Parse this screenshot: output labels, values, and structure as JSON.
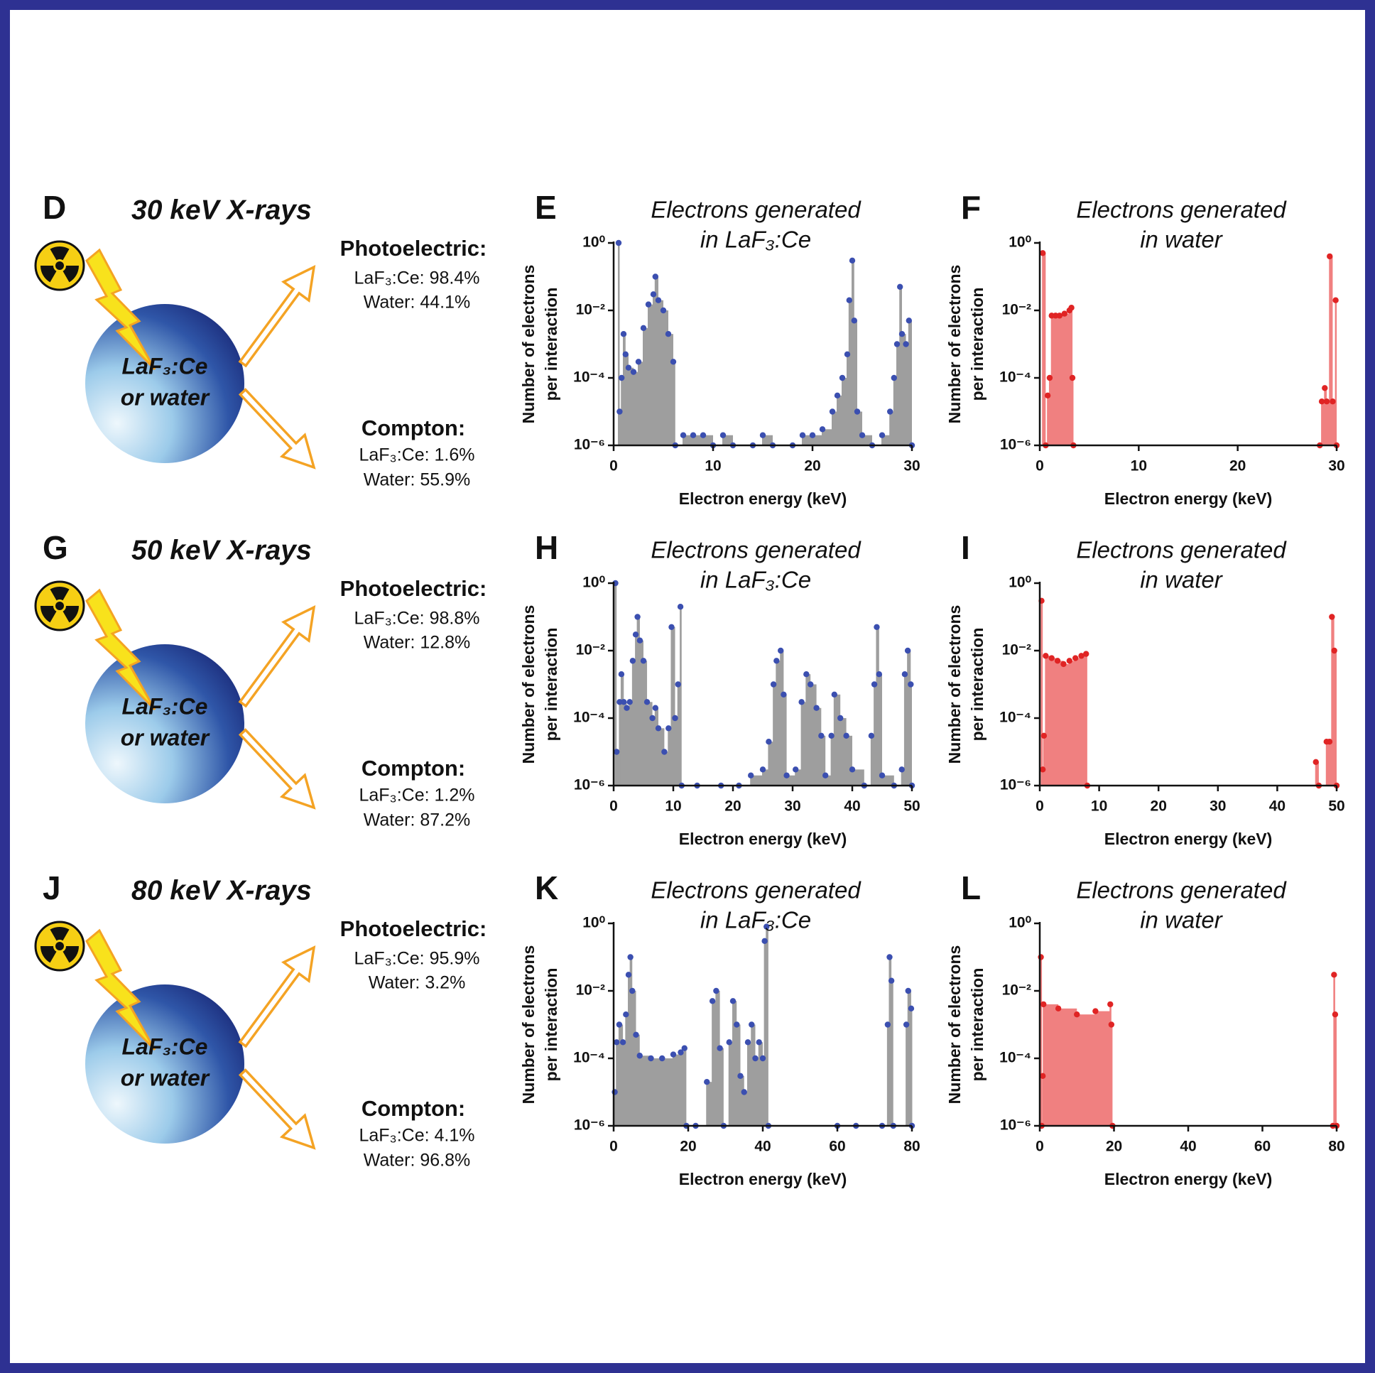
{
  "chart_data": [
    {
      "type": "stem",
      "panel": "E",
      "title": [
        "Electrons generated",
        "in LaF₃:Ce"
      ],
      "xlabel": "Electron energy (keV)",
      "ylabel": [
        "Number of electrons",
        "per interaction"
      ],
      "log_y": true,
      "color": "#3b4fb0",
      "fill_color": "#9e9e9e",
      "xlim": [
        0,
        30
      ],
      "xticks": [
        0,
        10,
        20,
        30
      ],
      "ylim": [
        1e-06,
        1
      ],
      "yticks": [
        {
          "value": 1e-06,
          "label": "10⁻⁶"
        },
        {
          "value": 0.0001,
          "label": "10⁻⁴"
        },
        {
          "value": 0.01,
          "label": "10⁻²"
        },
        {
          "value": 1,
          "label": "10⁰"
        }
      ],
      "x": [
        0.5,
        0.6,
        0.8,
        1.0,
        1.2,
        1.5,
        2.0,
        2.5,
        3.0,
        3.5,
        4.0,
        4.2,
        4.5,
        5.0,
        5.5,
        6.0,
        6.2,
        7,
        8,
        9,
        10,
        11,
        12,
        14,
        15,
        16,
        18,
        19,
        20,
        21,
        22,
        22.5,
        23,
        23.5,
        23.7,
        24.0,
        24.2,
        24.5,
        25,
        26,
        27,
        27.8,
        28.2,
        28.5,
        28.8,
        29.0,
        29.4,
        29.7,
        30.0
      ],
      "values": [
        1,
        1e-05,
        0.0001,
        0.002,
        0.0005,
        0.0002,
        0.00015,
        0.0003,
        0.003,
        0.015,
        0.03,
        0.1,
        0.02,
        0.01,
        0.002,
        0.0003,
        1e-06,
        2e-06,
        2e-06,
        2e-06,
        1e-06,
        2e-06,
        1e-06,
        1e-06,
        2e-06,
        1e-06,
        1e-06,
        2e-06,
        2e-06,
        3e-06,
        1e-05,
        3e-05,
        0.0001,
        0.0005,
        0.02,
        0.3,
        0.005,
        1e-05,
        2e-06,
        1e-06,
        2e-06,
        1e-05,
        0.0001,
        0.001,
        0.05,
        0.002,
        0.001,
        0.005,
        1e-06
      ]
    },
    {
      "type": "stem",
      "panel": "F",
      "title": [
        "Electrons generated",
        "in water"
      ],
      "xlabel": "Electron energy (keV)",
      "ylabel": [
        "Number of electrons",
        "per interaction"
      ],
      "log_y": true,
      "color": "#e02424",
      "fill_color": "#f08080",
      "xlim": [
        0,
        30
      ],
      "xticks": [
        0,
        10,
        20,
        30
      ],
      "ylim": [
        1e-06,
        1
      ],
      "yticks": [
        {
          "value": 1e-06,
          "label": "10⁻⁶"
        },
        {
          "value": 0.0001,
          "label": "10⁻⁴"
        },
        {
          "value": 0.01,
          "label": "10⁻²"
        },
        {
          "value": 1,
          "label": "10⁰"
        }
      ],
      "x": [
        0.3,
        0.6,
        0.8,
        1.0,
        1.2,
        1.6,
        2.0,
        2.5,
        3.0,
        3.2,
        3.3,
        3.4,
        28.3,
        28.5,
        28.8,
        29.0,
        29.3,
        29.6,
        29.9,
        30
      ],
      "values": [
        0.5,
        1e-06,
        3e-05,
        0.0001,
        0.007,
        0.007,
        0.007,
        0.008,
        0.01,
        0.012,
        0.0001,
        1e-06,
        1e-06,
        2e-05,
        5e-05,
        2e-05,
        0.4,
        2e-05,
        0.02,
        1e-06
      ]
    },
    {
      "type": "stem",
      "panel": "H",
      "title": [
        "Electrons generated",
        "in LaF₃:Ce"
      ],
      "xlabel": "Electron energy (keV)",
      "ylabel": [
        "Number of electrons",
        "per interaction"
      ],
      "log_y": true,
      "color": "#3b4fb0",
      "fill_color": "#9e9e9e",
      "xlim": [
        0,
        50
      ],
      "xticks": [
        0,
        10,
        20,
        30,
        40,
        50
      ],
      "ylim": [
        1e-06,
        1
      ],
      "yticks": [
        {
          "value": 1e-06,
          "label": "10⁻⁶"
        },
        {
          "value": 0.0001,
          "label": "10⁻⁴"
        },
        {
          "value": 0.01,
          "label": "10⁻²"
        },
        {
          "value": 1,
          "label": "10⁰"
        }
      ],
      "x": [
        0.3,
        0.5,
        1.0,
        1.3,
        1.7,
        2.2,
        2.7,
        3.2,
        3.7,
        4.0,
        4.4,
        5.0,
        5.6,
        6.5,
        7.0,
        7.5,
        8.5,
        9.2,
        9.7,
        10.3,
        10.8,
        11.2,
        11.4,
        14,
        18,
        21,
        23,
        25,
        26,
        26.8,
        27.3,
        28,
        28.5,
        29,
        30.5,
        31.5,
        32.3,
        33,
        34,
        34.8,
        35.5,
        36.5,
        37,
        38,
        39,
        40,
        42,
        43.2,
        43.7,
        44.1,
        44.5,
        45,
        47,
        48.3,
        48.8,
        49.3,
        49.8,
        50
      ],
      "values": [
        1,
        1e-05,
        0.0003,
        0.002,
        0.0003,
        0.0002,
        0.0003,
        0.005,
        0.03,
        0.1,
        0.02,
        0.005,
        0.0003,
        0.0001,
        0.0002,
        5e-05,
        1e-05,
        5e-05,
        0.05,
        0.0001,
        0.001,
        0.2,
        1e-06,
        1e-06,
        1e-06,
        1e-06,
        2e-06,
        3e-06,
        2e-05,
        0.001,
        0.005,
        0.01,
        0.0005,
        2e-06,
        3e-06,
        0.0003,
        0.002,
        0.001,
        0.0002,
        3e-05,
        2e-06,
        3e-05,
        0.0005,
        0.0001,
        3e-05,
        3e-06,
        1e-06,
        3e-05,
        0.001,
        0.05,
        0.002,
        2e-06,
        1e-06,
        3e-06,
        0.002,
        0.01,
        0.001,
        1e-06
      ]
    },
    {
      "type": "stem",
      "panel": "I",
      "title": [
        "Electrons generated",
        "in water"
      ],
      "xlabel": "Electron energy (keV)",
      "ylabel": [
        "Number of electrons",
        "per interaction"
      ],
      "log_y": true,
      "color": "#e02424",
      "fill_color": "#f08080",
      "xlim": [
        0,
        50
      ],
      "xticks": [
        0,
        10,
        20,
        30,
        40,
        50
      ],
      "ylim": [
        1e-06,
        1
      ],
      "yticks": [
        {
          "value": 1e-06,
          "label": "10⁻⁶"
        },
        {
          "value": 0.0001,
          "label": "10⁻⁴"
        },
        {
          "value": 0.01,
          "label": "10⁻²"
        },
        {
          "value": 1,
          "label": "10⁰"
        }
      ],
      "x": [
        0.3,
        0.5,
        0.7,
        1.0,
        2,
        3,
        4,
        5,
        6,
        7,
        7.8,
        8.0,
        46.5,
        47,
        48.3,
        48.8,
        49.2,
        49.6,
        50
      ],
      "values": [
        0.3,
        3e-06,
        3e-05,
        0.007,
        0.006,
        0.005,
        0.004,
        0.005,
        0.006,
        0.007,
        0.008,
        1e-06,
        5e-06,
        1e-06,
        2e-05,
        2e-05,
        0.1,
        0.01,
        1e-06
      ]
    },
    {
      "type": "stem",
      "panel": "K",
      "title": [
        "Electrons generated",
        "in LaF₃:Ce"
      ],
      "xlabel": "Electron energy (keV)",
      "ylabel": [
        "Number of electrons",
        "per interaction"
      ],
      "log_y": true,
      "color": "#3b4fb0",
      "fill_color": "#9e9e9e",
      "xlim": [
        0,
        80
      ],
      "xticks": [
        0,
        20,
        40,
        60,
        80
      ],
      "ylim": [
        1e-06,
        1
      ],
      "yticks": [
        {
          "value": 1e-06,
          "label": "10⁻⁶"
        },
        {
          "value": 0.0001,
          "label": "10⁻⁴"
        },
        {
          "value": 0.01,
          "label": "10⁻²"
        },
        {
          "value": 1,
          "label": "10⁰"
        }
      ],
      "x": [
        0.3,
        0.8,
        1.5,
        2.5,
        3.3,
        4,
        4.5,
        5,
        6,
        7,
        10,
        13,
        16,
        18,
        19,
        19.5,
        22,
        25,
        26.5,
        27.5,
        28.5,
        29.5,
        31,
        32,
        33,
        34,
        35,
        36,
        37,
        38,
        39,
        40,
        40.5,
        41,
        41.5,
        60,
        65,
        72,
        73.5,
        74,
        74.5,
        75,
        78.5,
        79,
        79.8,
        80
      ],
      "values": [
        1e-05,
        0.0003,
        0.001,
        0.0003,
        0.002,
        0.03,
        0.1,
        0.01,
        0.0005,
        0.00012,
        0.0001,
        0.0001,
        0.00013,
        0.00015,
        0.0002,
        1e-06,
        1e-06,
        2e-05,
        0.005,
        0.01,
        0.0002,
        1e-06,
        0.0003,
        0.005,
        0.001,
        3e-05,
        1e-05,
        0.0003,
        0.001,
        0.0001,
        0.0003,
        0.0001,
        0.3,
        0.8,
        1e-06,
        1e-06,
        1e-06,
        1e-06,
        0.001,
        0.1,
        0.02,
        1e-06,
        0.001,
        0.01,
        0.003,
        1e-06
      ]
    },
    {
      "type": "stem",
      "panel": "L",
      "title": [
        "Electrons generated",
        "in water"
      ],
      "xlabel": "Electron energy (keV)",
      "ylabel": [
        "Number of electrons",
        "per interaction"
      ],
      "log_y": true,
      "color": "#e02424",
      "fill_color": "#f08080",
      "xlim": [
        0,
        80
      ],
      "xticks": [
        0,
        20,
        40,
        60,
        80
      ],
      "ylim": [
        1e-06,
        1
      ],
      "yticks": [
        {
          "value": 1e-06,
          "label": "10⁻⁶"
        },
        {
          "value": 0.0001,
          "label": "10⁻⁴"
        },
        {
          "value": 0.01,
          "label": "10⁻²"
        },
        {
          "value": 1,
          "label": "10⁰"
        }
      ],
      "x": [
        0.3,
        0.5,
        0.8,
        1,
        5,
        10,
        15,
        19,
        19.3,
        19.6,
        79,
        79.3,
        79.6,
        80
      ],
      "values": [
        0.1,
        1e-06,
        3e-05,
        0.004,
        0.003,
        0.002,
        0.0025,
        0.004,
        0.001,
        1e-06,
        1e-06,
        0.03,
        0.002,
        1e-06
      ]
    }
  ],
  "diagrams": [
    {
      "panel": "D",
      "title": "30 keV X-rays",
      "sphere_label": [
        "LaF₃:Ce",
        "or water"
      ],
      "photoelectric": {
        "heading": "Photoelectric:",
        "lines": [
          "LaF₃:Ce: 98.4%",
          "Water: 44.1%"
        ]
      },
      "compton": {
        "heading": "Compton:",
        "lines": [
          "LaF₃:Ce: 1.6%",
          "Water: 55.9%"
        ]
      }
    },
    {
      "panel": "G",
      "title": "50 keV X-rays",
      "sphere_label": [
        "LaF₃:Ce",
        "or water"
      ],
      "photoelectric": {
        "heading": "Photoelectric:",
        "lines": [
          "LaF₃:Ce: 98.8%",
          "Water: 12.8%"
        ]
      },
      "compton": {
        "heading": "Compton:",
        "lines": [
          "LaF₃:Ce: 1.2%",
          "Water: 87.2%"
        ]
      }
    },
    {
      "panel": "J",
      "title": "80 keV X-rays",
      "sphere_label": [
        "LaF₃:Ce",
        "or water"
      ],
      "photoelectric": {
        "heading": "Photoelectric:",
        "lines": [
          "LaF₃:Ce: 95.9%",
          "Water: 3.2%"
        ]
      },
      "compton": {
        "heading": "Compton:",
        "lines": [
          "LaF₃:Ce: 4.1%",
          "Water: 96.8%"
        ]
      }
    }
  ]
}
